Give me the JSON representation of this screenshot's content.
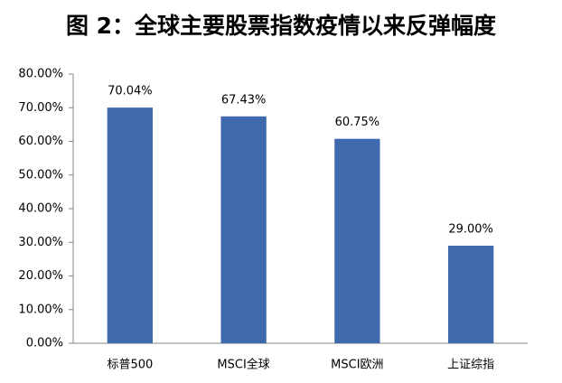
{
  "chart_data": {
    "type": "bar",
    "title": "图 2：全球主要股票指数疫情以来反弹幅度",
    "categories": [
      "标普500",
      "MSCI全球",
      "MSCI欧洲",
      "上证综指"
    ],
    "values": [
      70.04,
      67.43,
      60.75,
      29.0
    ],
    "value_labels": [
      "70.04%",
      "67.43%",
      "60.75%",
      "29.00%"
    ],
    "color": "#3f69ad",
    "ylim": [
      0,
      80
    ],
    "yticks": [
      {
        "value": 0,
        "label": "0.00%"
      },
      {
        "value": 10,
        "label": "10.00%"
      },
      {
        "value": 20,
        "label": "20.00%"
      },
      {
        "value": 30,
        "label": "30.00%"
      },
      {
        "value": 40,
        "label": "40.00%"
      },
      {
        "value": 50,
        "label": "50.00%"
      },
      {
        "value": 60,
        "label": "60.00%"
      },
      {
        "value": 70,
        "label": "70.00%"
      },
      {
        "value": 80,
        "label": "80.00%"
      }
    ],
    "grid": false
  }
}
